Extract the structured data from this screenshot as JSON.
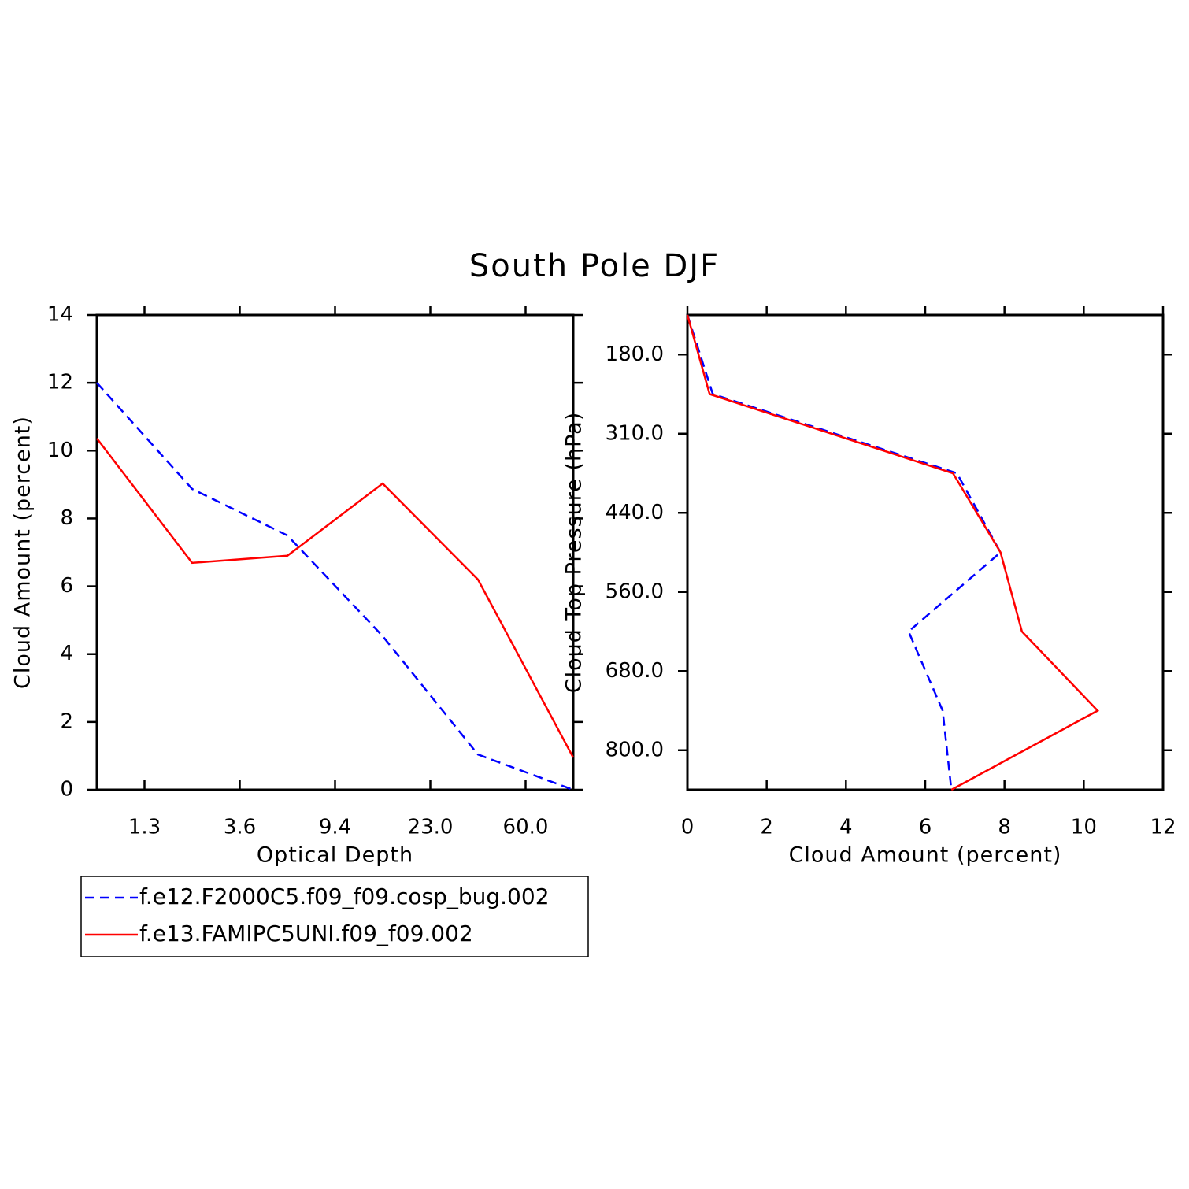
{
  "title": "South Pole DJF",
  "chart_data": [
    {
      "type": "line",
      "xlabel": "Optical Depth",
      "ylabel": "Cloud Amount (percent)",
      "x": [
        0,
        1,
        2,
        3,
        4,
        5
      ],
      "xlim": [
        0,
        5
      ],
      "xticks": [
        {
          "value": 0.5,
          "label": "1.3"
        },
        {
          "value": 1.5,
          "label": "3.6"
        },
        {
          "value": 2.5,
          "label": "9.4"
        },
        {
          "value": 3.5,
          "label": "23.0"
        },
        {
          "value": 4.5,
          "label": "60.0"
        }
      ],
      "ylim": [
        0,
        14
      ],
      "yticks": [
        0,
        2,
        4,
        6,
        8,
        10,
        12,
        14
      ],
      "series": [
        {
          "name": "f.e12.F2000C5.f09_f09.cosp_bug.002",
          "color": "#0000ff",
          "dashed": true,
          "values": [
            12.0,
            8.87,
            7.5,
            4.53,
            1.04,
            0
          ]
        },
        {
          "name": "f.e13.FAMIPC5UNI.f09_f09.002",
          "color": "#ff0000",
          "dashed": false,
          "values": [
            10.36,
            6.69,
            6.9,
            9.03,
            6.2,
            0.95
          ]
        }
      ]
    },
    {
      "type": "line",
      "orientation": "horizontal",
      "xlabel": "Cloud Amount (percent)",
      "ylabel": "Cloud Top Pressure (hPa)",
      "y": [
        0,
        1,
        2,
        3,
        4,
        5,
        6
      ],
      "ylim": [
        6,
        0
      ],
      "yticks": [
        {
          "value": 0.5,
          "label": "180.0"
        },
        {
          "value": 1.5,
          "label": "310.0"
        },
        {
          "value": 2.5,
          "label": "440.0"
        },
        {
          "value": 3.5,
          "label": "560.0"
        },
        {
          "value": 4.5,
          "label": "680.0"
        },
        {
          "value": 5.5,
          "label": "800.0"
        }
      ],
      "xlim": [
        0,
        12
      ],
      "xticks": [
        0,
        2,
        4,
        6,
        8,
        10,
        12
      ],
      "series": [
        {
          "color": "#0000ff",
          "dashed": true,
          "values": [
            0,
            0.64,
            6.8,
            7.9,
            5.58,
            6.44,
            6.66
          ]
        },
        {
          "color": "#ff0000",
          "dashed": false,
          "values": [
            0,
            0.56,
            6.7,
            7.9,
            8.44,
            10.35,
            6.66
          ]
        }
      ]
    }
  ]
}
